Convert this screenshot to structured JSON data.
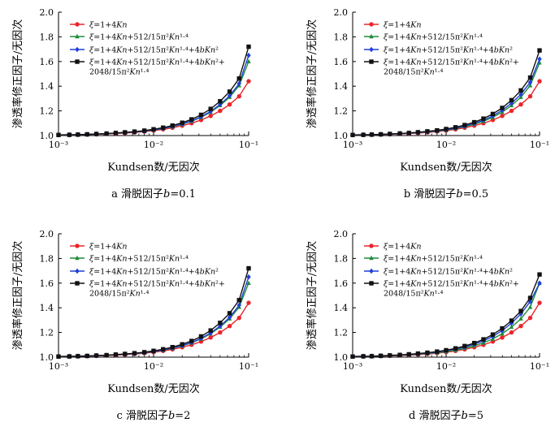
{
  "chart_data": [
    {
      "type": "line",
      "caption": "a  滑脱因子b=0.1",
      "xlabel": "Kundsen数/无因次",
      "ylabel": "渗透率修正因子/无因次",
      "xscale": "log",
      "xlim": [
        0.001,
        0.1
      ],
      "ylim": [
        1.0,
        2.0
      ],
      "xticks": [
        "10⁻³",
        "10⁻²",
        "10⁻¹"
      ],
      "yticks": [
        "1.0",
        "1.2",
        "1.4",
        "1.6",
        "1.8",
        "2.0"
      ],
      "legend_position": "top-left",
      "x": [
        0.001,
        0.0013,
        0.0016,
        0.002,
        0.0025,
        0.0032,
        0.004,
        0.005,
        0.0063,
        0.008,
        0.01,
        0.0126,
        0.0158,
        0.02,
        0.0251,
        0.0316,
        0.0398,
        0.0501,
        0.0631,
        0.0794,
        0.1
      ],
      "series": [
        {
          "name": "ξ=1+4Kn",
          "color": "#e8262b",
          "marker": "circle",
          "values": [
            1.004,
            1.005,
            1.006,
            1.008,
            1.01,
            1.013,
            1.016,
            1.02,
            1.025,
            1.032,
            1.04,
            1.05,
            1.063,
            1.08,
            1.1,
            1.126,
            1.159,
            1.2,
            1.252,
            1.318,
            1.44
          ]
        },
        {
          "name": "ξ=1+4Kn+512/15π²Kn¹·⁴",
          "color": "#1e8c3a",
          "marker": "triangle",
          "values": [
            1.005,
            1.006,
            1.007,
            1.009,
            1.012,
            1.015,
            1.019,
            1.024,
            1.029,
            1.036,
            1.045,
            1.057,
            1.072,
            1.092,
            1.116,
            1.148,
            1.19,
            1.244,
            1.311,
            1.405,
            1.6
          ]
        },
        {
          "name": "ξ=1+4Kn+512/15π²Kn¹·⁴+4bKn²",
          "color": "#1f3fd6",
          "marker": "diamond",
          "values": [
            1.005,
            1.006,
            1.007,
            1.009,
            1.012,
            1.015,
            1.019,
            1.024,
            1.029,
            1.037,
            1.046,
            1.058,
            1.074,
            1.094,
            1.119,
            1.152,
            1.196,
            1.252,
            1.322,
            1.421,
            1.65
          ]
        },
        {
          "name": "ξ=1+4Kn+512/15π²Kn¹·⁴+4bKn²+\n2048/15π²Kn¹·⁴",
          "color": "#111111",
          "marker": "square",
          "values": [
            1.005,
            1.006,
            1.008,
            1.01,
            1.013,
            1.016,
            1.021,
            1.026,
            1.032,
            1.04,
            1.051,
            1.064,
            1.081,
            1.104,
            1.131,
            1.168,
            1.216,
            1.278,
            1.356,
            1.462,
            1.72
          ]
        }
      ]
    },
    {
      "type": "line",
      "caption": "b  滑脱因子b=0.5",
      "xlabel": "Kundsen数/无因次",
      "ylabel": "渗透率修正因子/无因次",
      "xscale": "log",
      "xlim": [
        0.001,
        0.1
      ],
      "ylim": [
        1.0,
        2.0
      ],
      "xticks": [
        "10⁻³",
        "10⁻²",
        "10⁻¹"
      ],
      "yticks": [
        "1.0",
        "1.2",
        "1.4",
        "1.6",
        "1.8",
        "2.0"
      ],
      "legend_position": "top-left",
      "x": [
        0.001,
        0.0013,
        0.0016,
        0.002,
        0.0025,
        0.0032,
        0.004,
        0.005,
        0.0063,
        0.008,
        0.01,
        0.0126,
        0.0158,
        0.02,
        0.0251,
        0.0316,
        0.0398,
        0.0501,
        0.0631,
        0.0794,
        0.1
      ],
      "series": [
        {
          "name": "ξ=1+4Kn",
          "color": "#e8262b",
          "marker": "circle",
          "values": [
            1.004,
            1.005,
            1.006,
            1.008,
            1.01,
            1.013,
            1.016,
            1.02,
            1.025,
            1.032,
            1.04,
            1.05,
            1.063,
            1.08,
            1.1,
            1.126,
            1.159,
            1.2,
            1.252,
            1.318,
            1.44
          ]
        },
        {
          "name": "ξ=1+4Kn+512/15π²Kn¹·⁴",
          "color": "#1e8c3a",
          "marker": "triangle",
          "values": [
            1.005,
            1.006,
            1.007,
            1.009,
            1.012,
            1.015,
            1.019,
            1.024,
            1.029,
            1.036,
            1.045,
            1.057,
            1.072,
            1.092,
            1.116,
            1.148,
            1.19,
            1.244,
            1.311,
            1.405,
            1.59
          ]
        },
        {
          "name": "ξ=1+4Kn+512/15π²Kn¹·⁴+4bKn²",
          "color": "#1f3fd6",
          "marker": "diamond",
          "values": [
            1.005,
            1.006,
            1.007,
            1.009,
            1.012,
            1.015,
            1.019,
            1.024,
            1.03,
            1.038,
            1.047,
            1.06,
            1.077,
            1.098,
            1.124,
            1.159,
            1.205,
            1.262,
            1.334,
            1.432,
            1.62
          ]
        },
        {
          "name": "ξ=1+4Kn+512/15π²Kn¹·⁴+4bKn²+\n2048/15π²Kn¹·⁴",
          "color": "#111111",
          "marker": "square",
          "values": [
            1.005,
            1.006,
            1.008,
            1.01,
            1.013,
            1.017,
            1.021,
            1.027,
            1.034,
            1.042,
            1.053,
            1.067,
            1.085,
            1.108,
            1.137,
            1.175,
            1.224,
            1.287,
            1.366,
            1.47,
            1.69
          ]
        }
      ]
    },
    {
      "type": "line",
      "caption": "c  滑脱因子b=2",
      "xlabel": "Kundsen数/无因次",
      "ylabel": "渗透率修正因子/无因次",
      "xscale": "log",
      "xlim": [
        0.001,
        0.1
      ],
      "ylim": [
        1.0,
        2.0
      ],
      "xticks": [
        "10⁻³",
        "10⁻²",
        "10⁻¹"
      ],
      "yticks": [
        "1.0",
        "1.2",
        "1.4",
        "1.6",
        "1.8",
        "2.0"
      ],
      "legend_position": "top-left",
      "x": [
        0.001,
        0.0013,
        0.0016,
        0.002,
        0.0025,
        0.0032,
        0.004,
        0.005,
        0.0063,
        0.008,
        0.01,
        0.0126,
        0.0158,
        0.02,
        0.0251,
        0.0316,
        0.0398,
        0.0501,
        0.0631,
        0.0794,
        0.1
      ],
      "series": [
        {
          "name": "ξ=1+4Kn",
          "color": "#e8262b",
          "marker": "circle",
          "values": [
            1.004,
            1.005,
            1.006,
            1.008,
            1.01,
            1.013,
            1.016,
            1.02,
            1.025,
            1.032,
            1.04,
            1.05,
            1.063,
            1.08,
            1.1,
            1.126,
            1.159,
            1.2,
            1.252,
            1.318,
            1.44
          ]
        },
        {
          "name": "ξ=1+4Kn+512/15π²Kn¹·⁴",
          "color": "#1e8c3a",
          "marker": "triangle",
          "values": [
            1.005,
            1.006,
            1.007,
            1.009,
            1.012,
            1.015,
            1.019,
            1.024,
            1.029,
            1.036,
            1.045,
            1.057,
            1.072,
            1.092,
            1.116,
            1.148,
            1.19,
            1.244,
            1.311,
            1.405,
            1.6
          ]
        },
        {
          "name": "ξ=1+4Kn+512/15π²Kn¹·⁴+4bKn²",
          "color": "#1f3fd6",
          "marker": "diamond",
          "values": [
            1.005,
            1.006,
            1.007,
            1.009,
            1.012,
            1.015,
            1.019,
            1.024,
            1.029,
            1.037,
            1.046,
            1.058,
            1.074,
            1.094,
            1.119,
            1.152,
            1.196,
            1.252,
            1.322,
            1.421,
            1.65
          ]
        },
        {
          "name": "ξ=1+4Kn+512/15π²Kn¹·⁴+4bKn²+\n2048/15π²Kn¹·⁴",
          "color": "#111111",
          "marker": "square",
          "values": [
            1.005,
            1.006,
            1.008,
            1.01,
            1.013,
            1.016,
            1.021,
            1.026,
            1.032,
            1.04,
            1.051,
            1.064,
            1.081,
            1.104,
            1.131,
            1.168,
            1.216,
            1.278,
            1.356,
            1.462,
            1.72
          ]
        }
      ]
    },
    {
      "type": "line",
      "caption": "d  滑脱因子b=5",
      "xlabel": "Kundsen数/无因次",
      "ylabel": "渗透率修正因子/无因次",
      "xscale": "log",
      "xlim": [
        0.001,
        0.1
      ],
      "ylim": [
        1.0,
        2.0
      ],
      "xticks": [
        "10⁻³",
        "10⁻²",
        "10⁻¹"
      ],
      "yticks": [
        "1.0",
        "1.2",
        "1.4",
        "1.6",
        "1.8",
        "2.0"
      ],
      "legend_position": "top-left",
      "x": [
        0.001,
        0.0013,
        0.0016,
        0.002,
        0.0025,
        0.0032,
        0.004,
        0.005,
        0.0063,
        0.008,
        0.01,
        0.0126,
        0.0158,
        0.02,
        0.0251,
        0.0316,
        0.0398,
        0.0501,
        0.0631,
        0.0794,
        0.1
      ],
      "series": [
        {
          "name": "ξ=1+4Kn",
          "color": "#e8262b",
          "marker": "circle",
          "values": [
            1.004,
            1.005,
            1.006,
            1.008,
            1.01,
            1.013,
            1.016,
            1.02,
            1.025,
            1.032,
            1.04,
            1.05,
            1.063,
            1.08,
            1.1,
            1.126,
            1.159,
            1.2,
            1.252,
            1.318,
            1.44
          ]
        },
        {
          "name": "ξ=1+4Kn+512/15π²Kn¹·⁴",
          "color": "#1e8c3a",
          "marker": "triangle",
          "values": [
            1.005,
            1.006,
            1.007,
            1.009,
            1.012,
            1.015,
            1.019,
            1.024,
            1.029,
            1.036,
            1.045,
            1.057,
            1.072,
            1.092,
            1.116,
            1.148,
            1.19,
            1.244,
            1.311,
            1.405,
            1.6
          ]
        },
        {
          "name": "ξ=1+4Kn+512/15π²Kn¹·⁴+4bKn²",
          "color": "#1f3fd6",
          "marker": "diamond",
          "values": [
            1.005,
            1.006,
            1.008,
            1.01,
            1.013,
            1.016,
            1.021,
            1.026,
            1.033,
            1.041,
            1.052,
            1.065,
            1.082,
            1.104,
            1.132,
            1.168,
            1.215,
            1.275,
            1.35,
            1.45,
            1.6
          ]
        },
        {
          "name": "ξ=1+4Kn+512/15π²Kn¹·⁴+4bKn²+\n2048/15π²Kn¹·⁴",
          "color": "#111111",
          "marker": "square",
          "values": [
            1.005,
            1.007,
            1.008,
            1.011,
            1.014,
            1.018,
            1.023,
            1.029,
            1.036,
            1.045,
            1.056,
            1.071,
            1.09,
            1.114,
            1.144,
            1.183,
            1.233,
            1.296,
            1.374,
            1.48,
            1.67
          ]
        }
      ]
    }
  ]
}
